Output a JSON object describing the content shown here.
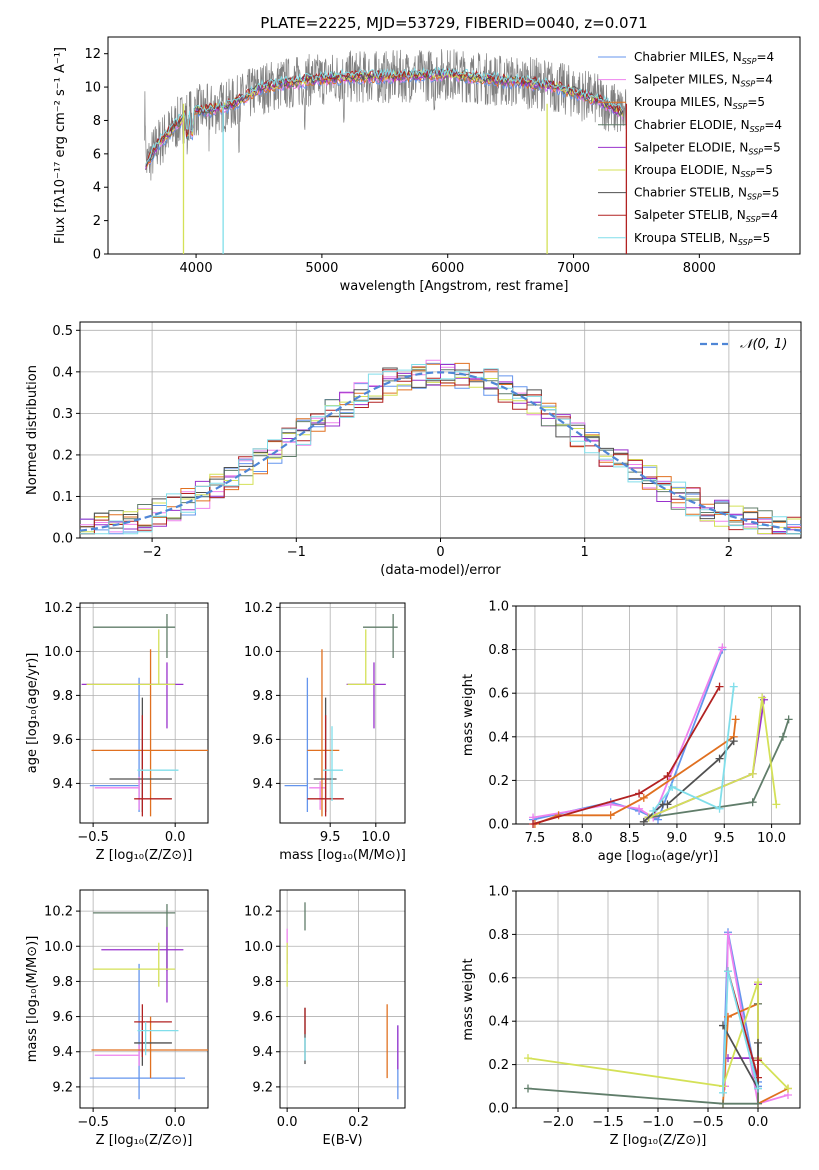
{
  "colors": [
    "#6495ed",
    "#ee82ee",
    "#e07020",
    "#607d6a",
    "#9932cc",
    "#d4e157",
    "#505050",
    "#b22222",
    "#80deea"
  ],
  "chart_data": [
    {
      "id": "spectrum",
      "type": "line",
      "title": "PLATE=2225, MJD=53729, FIBERID=0040, z=0.071",
      "xlabel": "wavelength [Angstrom, rest frame]",
      "ylabel": "Flux [fλ10⁻¹⁷ erg cm⁻² s⁻¹ A⁻¹]",
      "xlim": [
        3300,
        8800
      ],
      "ylim": [
        0,
        13
      ],
      "xticks": [
        4000,
        5000,
        6000,
        7000,
        8000
      ],
      "yticks": [
        0,
        2,
        4,
        6,
        8,
        10,
        12
      ],
      "legend_position": "right",
      "grid": false,
      "legend": [
        {
          "label": "Chabrier MILES, N",
          "sub": "SSP",
          "suffix": "=4"
        },
        {
          "label": "Salpeter MILES, N",
          "sub": "SSP",
          "suffix": "=4"
        },
        {
          "label": "Kroupa MILES, N",
          "sub": "SSP",
          "suffix": "=5"
        },
        {
          "label": "Chabrier ELODIE, N",
          "sub": "SSP",
          "suffix": "=4"
        },
        {
          "label": "Salpeter ELODIE, N",
          "sub": "SSP",
          "suffix": "=5"
        },
        {
          "label": "Kroupa ELODIE, N",
          "sub": "SSP",
          "suffix": "=5"
        },
        {
          "label": "Chabrier STELIB, N",
          "sub": "SSP",
          "suffix": "=5"
        },
        {
          "label": "Salpeter STELIB, N",
          "sub": "SSP",
          "suffix": "=4"
        },
        {
          "label": "Kroupa STELIB, N",
          "sub": "SSP",
          "suffix": "=5"
        }
      ],
      "data_shape": [
        [
          3600,
          5.3
        ],
        [
          3700,
          6.6
        ],
        [
          3800,
          7.4
        ],
        [
          3900,
          8.2
        ],
        [
          4000,
          8.6
        ],
        [
          4100,
          8.6
        ],
        [
          4200,
          8.8
        ],
        [
          4300,
          9.0
        ],
        [
          4500,
          9.9
        ],
        [
          4700,
          10.2
        ],
        [
          4900,
          10.4
        ],
        [
          5200,
          10.6
        ],
        [
          5500,
          10.6
        ],
        [
          5800,
          10.7
        ],
        [
          6000,
          10.8
        ],
        [
          6200,
          10.6
        ],
        [
          6400,
          10.4
        ],
        [
          6600,
          10.3
        ],
        [
          6800,
          10.1
        ],
        [
          7000,
          9.7
        ],
        [
          7200,
          9.2
        ],
        [
          7400,
          8.4
        ]
      ]
    },
    {
      "id": "residuals",
      "type": "area",
      "xlabel": "(data-model)/error",
      "ylabel": "Normed distribution",
      "xlim": [
        -2.5,
        2.5
      ],
      "ylim": [
        0,
        0.52
      ],
      "xticks": [
        -2,
        -1,
        0,
        1,
        2
      ],
      "yticks": [
        0.0,
        0.1,
        0.2,
        0.3,
        0.4,
        0.5
      ],
      "grid": true,
      "legend_position": "top-right",
      "legend_label": "𝒩(0, 1)",
      "curve": "normal(0,1)"
    },
    {
      "id": "age-vs-z",
      "type": "scatter",
      "xlabel": "Z [log₁₀(Z/Z⊙)]",
      "ylabel": "age  [log₁₀(age/yr)]",
      "xlim": [
        -0.58,
        0.2
      ],
      "ylim": [
        9.22,
        10.22
      ],
      "xticks": [
        -0.5,
        0.0
      ],
      "yticks": [
        9.4,
        9.6,
        9.8,
        10.0,
        10.2
      ],
      "grid": true,
      "points": [
        {
          "x": -0.22,
          "y": 9.39,
          "xerr": [
            0.3,
            0.0
          ],
          "yerr": [
            0.12,
            0.49
          ]
        },
        {
          "x": -0.22,
          "y": 9.38,
          "xerr": [
            0.27,
            0.0
          ],
          "yerr": [
            0.1,
            0.05
          ]
        },
        {
          "x": -0.15,
          "y": 9.55,
          "xerr": [
            0.36,
            0.35
          ],
          "yerr": [
            0.3,
            0.46
          ]
        },
        {
          "x": -0.05,
          "y": 10.11,
          "xerr": [
            0.45,
            0.05
          ],
          "yerr": [
            0.14,
            0.06
          ]
        },
        {
          "x": -0.05,
          "y": 9.85,
          "xerr": [
            0.52,
            0.1
          ],
          "yerr": [
            0.2,
            0.1
          ]
        },
        {
          "x": -0.1,
          "y": 9.85,
          "xerr": [
            0.44,
            0.1
          ],
          "yerr": [
            0.0,
            0.25
          ]
        },
        {
          "x": -0.2,
          "y": 9.42,
          "xerr": [
            0.2,
            0.18
          ],
          "yerr": [
            0.15,
            0.37
          ]
        },
        {
          "x": -0.2,
          "y": 9.33,
          "xerr": [
            0.05,
            0.18
          ],
          "yerr": [
            0.08,
            0.38
          ]
        },
        {
          "x": -0.18,
          "y": 9.46,
          "xerr": [
            0.05,
            0.2
          ],
          "yerr": [
            0.0,
            0.0
          ]
        }
      ]
    },
    {
      "id": "age-vs-mass",
      "type": "scatter",
      "xlabel": "mass [log₁₀(M/M⊙)]",
      "ylabel": "",
      "xlim": [
        8.95,
        10.32
      ],
      "ylim": [
        9.22,
        10.22
      ],
      "xticks": [
        9.5,
        10.0
      ],
      "yticks": [
        9.4,
        9.6,
        9.8,
        10.0,
        10.2
      ],
      "grid": true,
      "points": [
        {
          "x": 9.25,
          "y": 9.39,
          "xerr": [
            0.25,
            0.0
          ],
          "yerr": [
            0.12,
            0.49
          ]
        },
        {
          "x": 9.39,
          "y": 9.38,
          "xerr": [
            0.12,
            0.06
          ],
          "yerr": [
            0.1,
            0.03
          ]
        },
        {
          "x": 9.41,
          "y": 9.55,
          "xerr": [
            0.16,
            0.19
          ],
          "yerr": [
            0.3,
            0.46
          ]
        },
        {
          "x": 10.19,
          "y": 10.11,
          "xerr": [
            0.33,
            0.05
          ],
          "yerr": [
            0.14,
            0.06
          ]
        },
        {
          "x": 9.98,
          "y": 9.85,
          "xerr": [
            0.3,
            0.13
          ],
          "yerr": [
            0.2,
            0.1
          ]
        },
        {
          "x": 9.89,
          "y": 9.85,
          "xerr": [
            0.2,
            0.1
          ],
          "yerr": [
            0.0,
            0.25
          ]
        },
        {
          "x": 9.45,
          "y": 9.42,
          "xerr": [
            0.13,
            0.12
          ],
          "yerr": [
            0.15,
            0.37
          ]
        },
        {
          "x": 9.45,
          "y": 9.33,
          "xerr": [
            0.2,
            0.2
          ],
          "yerr": [
            0.08,
            0.38
          ]
        },
        {
          "x": 9.52,
          "y": 9.46,
          "xerr": [
            0.1,
            0.12
          ],
          "yerr": [
            0.14,
            0.2
          ]
        }
      ]
    },
    {
      "id": "mass-weight-vs-age",
      "type": "line",
      "xlabel": "age  [log₁₀(age/yr)]",
      "ylabel": "mass weight",
      "xlim": [
        7.3,
        10.3
      ],
      "ylim": [
        0,
        1.0
      ],
      "xticks": [
        7.5,
        8.0,
        8.5,
        9.0,
        9.5,
        10.0
      ],
      "yticks": [
        0.0,
        0.2,
        0.4,
        0.6,
        0.8,
        1.0
      ],
      "grid": true,
      "series": [
        {
          "x": [
            7.48,
            8.3,
            8.6,
            8.8,
            9.48
          ],
          "y": [
            0.02,
            0.1,
            0.06,
            0.02,
            0.8
          ]
        },
        {
          "x": [
            7.48,
            8.3,
            8.6,
            8.75,
            9.48
          ],
          "y": [
            0.03,
            0.09,
            0.07,
            0.03,
            0.81
          ]
        },
        {
          "x": [
            7.5,
            7.75,
            8.3,
            8.65,
            9.6,
            9.62
          ],
          "y": [
            0.0,
            0.04,
            0.04,
            0.12,
            0.4,
            0.48
          ]
        },
        {
          "x": [
            8.7,
            9.8,
            10.12,
            10.18
          ],
          "y": [
            0.03,
            0.1,
            0.4,
            0.48
          ]
        },
        {
          "x": [
            8.7,
            9.8,
            9.92
          ],
          "y": [
            0.03,
            0.23,
            0.57
          ]
        },
        {
          "x": [
            8.7,
            9.8,
            9.9,
            10.05
          ],
          "y": [
            0.03,
            0.23,
            0.58,
            0.09
          ]
        },
        {
          "x": [
            8.65,
            8.85,
            8.9,
            9.45,
            9.6
          ],
          "y": [
            0.01,
            0.09,
            0.09,
            0.3,
            0.38
          ]
        },
        {
          "x": [
            7.48,
            8.6,
            8.9,
            9.45
          ],
          "y": [
            0.0,
            0.14,
            0.22,
            0.63
          ]
        },
        {
          "x": [
            8.75,
            8.95,
            9.45,
            9.6
          ],
          "y": [
            0.06,
            0.17,
            0.07,
            0.63
          ]
        }
      ]
    },
    {
      "id": "mass-vs-z",
      "type": "scatter",
      "xlabel": "Z [log₁₀(Z/Z⊙)]",
      "ylabel": "mass [log₁₀(M/M⊙)]",
      "xlim": [
        -0.58,
        0.2
      ],
      "ylim": [
        9.08,
        10.32
      ],
      "xticks": [
        -0.5,
        0.0
      ],
      "yticks": [
        9.2,
        9.4,
        9.6,
        9.8,
        10.0,
        10.2
      ],
      "grid": true,
      "points": [
        {
          "x": -0.22,
          "y": 9.25,
          "xerr": [
            0.3,
            0.28
          ],
          "yerr": [
            0.12,
            0.65
          ]
        },
        {
          "x": -0.22,
          "y": 9.38,
          "xerr": [
            0.27,
            0.0
          ],
          "yerr": [
            0.06,
            0.06
          ]
        },
        {
          "x": -0.15,
          "y": 9.41,
          "xerr": [
            0.36,
            0.35
          ],
          "yerr": [
            0.16,
            0.19
          ]
        },
        {
          "x": -0.05,
          "y": 10.19,
          "xerr": [
            0.45,
            0.05
          ],
          "yerr": [
            0.33,
            0.05
          ]
        },
        {
          "x": -0.05,
          "y": 9.98,
          "xerr": [
            0.4,
            0.1
          ],
          "yerr": [
            0.3,
            0.13
          ]
        },
        {
          "x": -0.1,
          "y": 9.87,
          "xerr": [
            0.4,
            0.1
          ],
          "yerr": [
            0.1,
            0.15
          ]
        },
        {
          "x": -0.2,
          "y": 9.45,
          "xerr": [
            0.05,
            0.18
          ],
          "yerr": [
            0.13,
            0.12
          ]
        },
        {
          "x": -0.2,
          "y": 9.57,
          "xerr": [
            0.05,
            0.18
          ],
          "yerr": [
            0.2,
            0.1
          ]
        },
        {
          "x": -0.18,
          "y": 9.52,
          "xerr": [
            0.05,
            0.2
          ],
          "yerr": [
            0.14,
            0.05
          ]
        }
      ]
    },
    {
      "id": "mass-vs-ebv",
      "type": "scatter",
      "xlabel": "E(B-V)",
      "ylabel": "",
      "xlim": [
        -0.02,
        0.33
      ],
      "ylim": [
        9.08,
        10.32
      ],
      "xticks": [
        0.0,
        0.2
      ],
      "yticks": [
        9.2,
        9.4,
        9.6,
        9.8,
        10.0,
        10.2
      ],
      "grid": true,
      "points": [
        {
          "x": 0.31,
          "y": 9.25,
          "xerr": [
            0,
            0
          ],
          "yerr": [
            0.12,
            0.3
          ]
        },
        {
          "x": 0.0,
          "y": 10.0,
          "xerr": [
            0,
            0
          ],
          "yerr": [
            0.1,
            0.1
          ]
        },
        {
          "x": 0.28,
          "y": 9.45,
          "xerr": [
            0,
            0
          ],
          "yerr": [
            0.2,
            0.22
          ]
        },
        {
          "x": 0.05,
          "y": 10.19,
          "xerr": [
            0,
            0
          ],
          "yerr": [
            0.1,
            0.06
          ]
        },
        {
          "x": 0.31,
          "y": 9.4,
          "xerr": [
            0,
            0
          ],
          "yerr": [
            0.1,
            0.15
          ]
        },
        {
          "x": 0.0,
          "y": 9.87,
          "xerr": [
            0,
            0
          ],
          "yerr": [
            0.1,
            0.15
          ]
        },
        {
          "x": 0.05,
          "y": 9.45,
          "xerr": [
            0,
            0
          ],
          "yerr": [
            0.12,
            0.2
          ]
        },
        {
          "x": 0.05,
          "y": 9.57,
          "xerr": [
            0,
            0
          ],
          "yerr": [
            0.07,
            0.08
          ]
        },
        {
          "x": 0.05,
          "y": 9.38,
          "xerr": [
            0,
            0
          ],
          "yerr": [
            0.03,
            0.1
          ]
        }
      ]
    },
    {
      "id": "mass-weight-vs-z",
      "type": "line",
      "xlabel": "Z [log₁₀(Z/Z⊙)]",
      "ylabel": "mass weight",
      "xlim": [
        -2.42,
        0.42
      ],
      "ylim": [
        0,
        1.0
      ],
      "xticks": [
        -2.0,
        -1.5,
        -1.0,
        -0.5,
        0.0
      ],
      "yticks": [
        0.0,
        0.2,
        0.4,
        0.6,
        0.8,
        1.0
      ],
      "grid": true,
      "series": [
        {
          "x": [
            -0.35,
            -0.3,
            0.0,
            0.0
          ],
          "y": [
            0.1,
            0.81,
            0.1,
            0.12
          ]
        },
        {
          "x": [
            -0.33,
            -0.3,
            0.0,
            0.3
          ],
          "y": [
            0.1,
            0.8,
            0.02,
            0.06
          ]
        },
        {
          "x": [
            -0.35,
            -0.3,
            0.0,
            0.0,
            0.3
          ],
          "y": [
            0.02,
            0.42,
            0.48,
            0.02,
            0.09
          ]
        },
        {
          "x": [
            -2.3,
            -0.35,
            0.0,
            0.0
          ],
          "y": [
            0.09,
            0.02,
            0.02,
            0.48
          ]
        },
        {
          "x": [
            -0.3,
            0.0,
            0.0
          ],
          "y": [
            0.23,
            0.23,
            0.57
          ]
        },
        {
          "x": [
            -2.3,
            -0.35,
            0.0,
            0.0,
            0.3
          ],
          "y": [
            0.23,
            0.1,
            0.58,
            0.23,
            0.09
          ]
        },
        {
          "x": [
            -0.35,
            0.0,
            0.0
          ],
          "y": [
            0.38,
            0.09,
            0.3
          ]
        },
        {
          "x": [
            -0.3,
            0.0,
            0.0
          ],
          "y": [
            0.63,
            0.14,
            0.22
          ]
        },
        {
          "x": [
            -0.35,
            -0.3,
            0.0
          ],
          "y": [
            0.07,
            0.63,
            0.09
          ]
        }
      ]
    }
  ]
}
